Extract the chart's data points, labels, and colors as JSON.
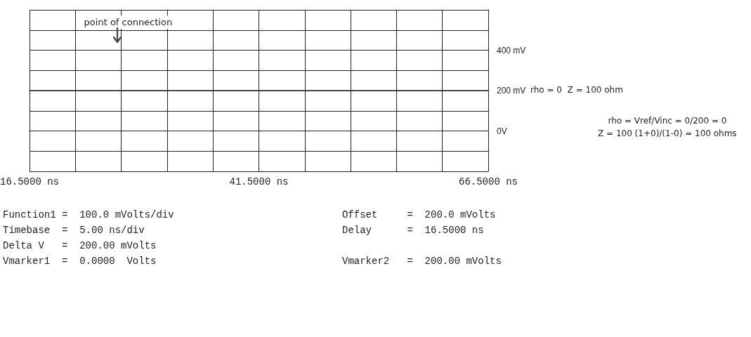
{
  "chart_data": {
    "type": "line",
    "x": [
      16.5,
      66.5
    ],
    "series": [
      {
        "color": "#333333",
        "values": [
          200,
          200
        ]
      }
    ],
    "xlim": [
      16.5,
      66.5
    ],
    "xticks": [
      {
        "value": 16.5,
        "label": "16.5000 ns"
      },
      {
        "value": 21.5,
        "label": null
      },
      {
        "value": 26.5,
        "label": null
      },
      {
        "value": 31.5,
        "label": null
      },
      {
        "value": 36.5,
        "label": null
      },
      {
        "value": 41.5,
        "label": "41.5000 ns"
      },
      {
        "value": 46.5,
        "label": null
      },
      {
        "value": 51.5,
        "label": null
      },
      {
        "value": 56.5,
        "label": null
      },
      {
        "value": 61.5,
        "label": null
      },
      {
        "value": 66.5,
        "label": "66.5000 ns"
      }
    ],
    "ylim": [
      -200,
      600
    ],
    "yticks": [
      {
        "value": -200,
        "label": null
      },
      {
        "value": -100,
        "label": null
      },
      {
        "value": 0,
        "label": "0V"
      },
      {
        "value": 100,
        "label": null
      },
      {
        "value": 200,
        "label": "200 mV"
      },
      {
        "value": 300,
        "label": null
      },
      {
        "value": 400,
        "label": "400 mV"
      },
      {
        "value": 500,
        "label": null
      },
      {
        "value": 600,
        "label": null
      }
    ],
    "grid": true,
    "marker": "none",
    "line_style": "solid",
    "annotations": [
      "point of connection",
      "rho = 0  Z = 100 ohm",
      "rho = Vref/Vinc = 0/200 = 0",
      "Z = 100 (1+0)/(1-0) = 100 ohms",
      "Function1 =  100.0 mVolts/div",
      "Timebase  =  5.00 ns/div",
      "Delta V   =  200.00 mVolts",
      "Vmarker1  =  0.0000  Volts",
      "Offset     =  200.0 mVolts",
      "Delay      =  16.5000 ns",
      "Vmarker2   =  200.00 mVolts"
    ]
  }
}
